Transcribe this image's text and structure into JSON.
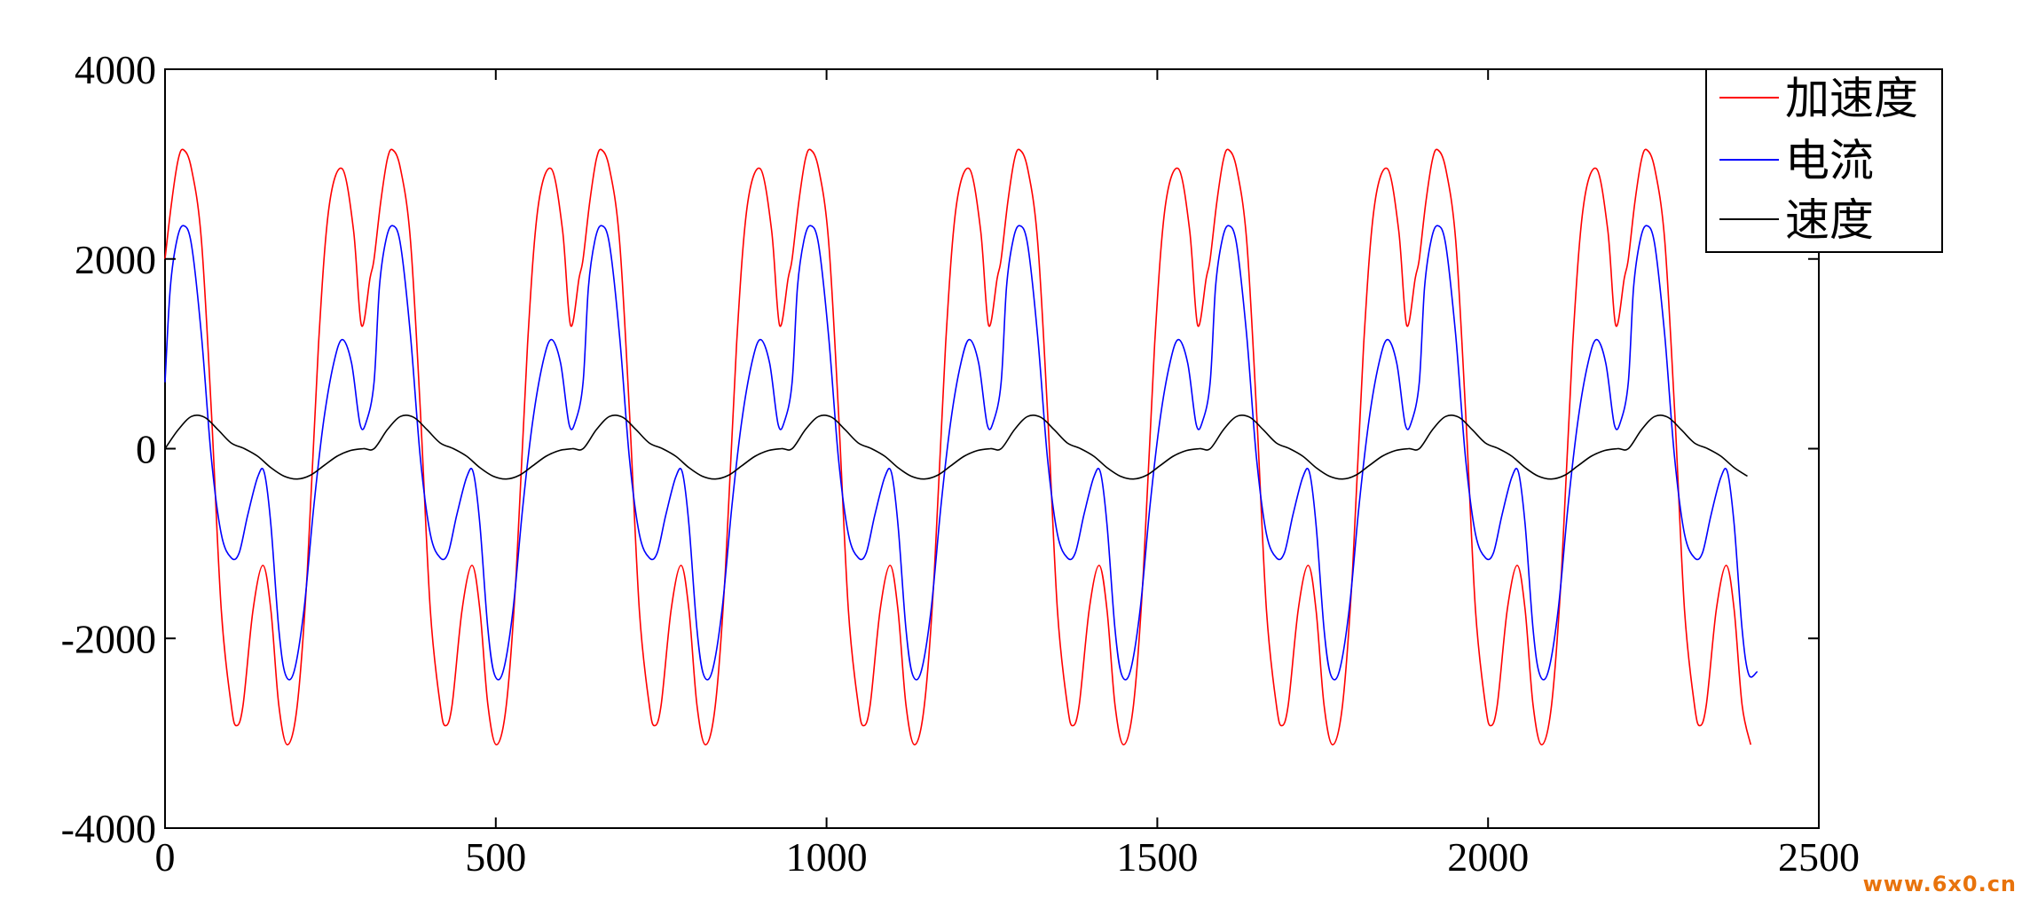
{
  "chart_data": {
    "type": "line",
    "title": "",
    "xlabel": "",
    "ylabel": "",
    "xlim": [
      0,
      2500
    ],
    "ylim": [
      -4000,
      4000
    ],
    "x_ticks": [
      0,
      500,
      1000,
      1500,
      2000,
      2500
    ],
    "y_ticks": [
      -4000,
      -2000,
      0,
      2000,
      4000
    ],
    "x_tick_labels": [
      "0",
      "500",
      "1000",
      "1500",
      "2000",
      "2500"
    ],
    "y_tick_labels": [
      "-4000",
      "-2000",
      "0",
      "2000",
      "4000"
    ],
    "grid": false,
    "legend_position": "top-right",
    "x_range_of_data": [
      0,
      2410
    ],
    "period": 316,
    "series": [
      {
        "name": "加速度",
        "color": "#ff0000",
        "one_period_points": [
          [
            0,
            2000
          ],
          [
            10,
            2600
          ],
          [
            20,
            3050
          ],
          [
            28,
            3150
          ],
          [
            40,
            2950
          ],
          [
            55,
            2200
          ],
          [
            70,
            400
          ],
          [
            85,
            -1700
          ],
          [
            100,
            -2700
          ],
          [
            108,
            -2920
          ],
          [
            118,
            -2700
          ],
          [
            133,
            -1700
          ],
          [
            148,
            -1230
          ],
          [
            160,
            -1700
          ],
          [
            172,
            -2700
          ],
          [
            185,
            -3120
          ],
          [
            200,
            -2700
          ],
          [
            215,
            -1300
          ],
          [
            232,
            1100
          ],
          [
            248,
            2550
          ],
          [
            268,
            2950
          ],
          [
            285,
            2300
          ],
          [
            297,
            1300
          ],
          [
            310,
            1800
          ],
          [
            316,
            2000
          ]
        ]
      },
      {
        "name": "电流",
        "color": "#0000ff",
        "one_period_points": [
          [
            0,
            700
          ],
          [
            8,
            1700
          ],
          [
            18,
            2200
          ],
          [
            28,
            2350
          ],
          [
            40,
            2150
          ],
          [
            55,
            1200
          ],
          [
            70,
            -100
          ],
          [
            85,
            -900
          ],
          [
            100,
            -1150
          ],
          [
            112,
            -1100
          ],
          [
            125,
            -700
          ],
          [
            140,
            -300
          ],
          [
            150,
            -250
          ],
          [
            160,
            -800
          ],
          [
            172,
            -1900
          ],
          [
            182,
            -2380
          ],
          [
            195,
            -2350
          ],
          [
            210,
            -1700
          ],
          [
            225,
            -600
          ],
          [
            240,
            300
          ],
          [
            255,
            900
          ],
          [
            268,
            1150
          ],
          [
            282,
            900
          ],
          [
            295,
            250
          ],
          [
            305,
            300
          ],
          [
            316,
            700
          ]
        ]
      },
      {
        "name": "速度",
        "color": "#000000",
        "one_period_points": [
          [
            0,
            0
          ],
          [
            20,
            200
          ],
          [
            40,
            340
          ],
          [
            60,
            330
          ],
          [
            80,
            200
          ],
          [
            100,
            60
          ],
          [
            120,
            0
          ],
          [
            140,
            -80
          ],
          [
            160,
            -200
          ],
          [
            180,
            -290
          ],
          [
            200,
            -320
          ],
          [
            220,
            -280
          ],
          [
            240,
            -180
          ],
          [
            260,
            -80
          ],
          [
            280,
            -20
          ],
          [
            300,
            0
          ],
          [
            316,
            0
          ]
        ]
      }
    ]
  },
  "watermark": "www.6x0.cn"
}
